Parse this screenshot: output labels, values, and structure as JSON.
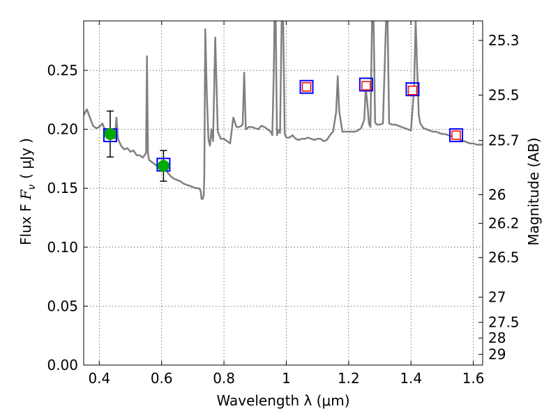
{
  "chart_data": {
    "type": "line",
    "xlabel": "Wavelength  λ (μm)",
    "ylabel": "Flux  F",
    "ylabel_sub": "ν",
    "ylabel_unit": "( μJy )",
    "y2label": "Magnitude (AB)",
    "xlim": [
      0.35,
      1.63
    ],
    "ylim": [
      0.0,
      0.292
    ],
    "grid": true,
    "xticks": [
      0.4,
      0.6,
      0.8,
      1.0,
      1.2,
      1.4,
      1.6
    ],
    "xtick_labels": [
      "0.4",
      "0.6",
      "0.8",
      "1",
      "1.2",
      "1.4",
      "1.6"
    ],
    "yticks": [
      0.0,
      0.05,
      0.1,
      0.15,
      0.2,
      0.25
    ],
    "ytick_labels": [
      "0.00",
      "0.05",
      "0.10",
      "0.15",
      "0.20",
      "0.25"
    ],
    "y2ticks": [
      {
        "label": "25.3",
        "mag": 25.3
      },
      {
        "label": "25.5",
        "mag": 25.5
      },
      {
        "label": "25.7",
        "mag": 25.7
      },
      {
        "label": "26",
        "mag": 26.0
      },
      {
        "label": "26.2",
        "mag": 26.2
      },
      {
        "label": "26.5",
        "mag": 26.5
      },
      {
        "label": "27",
        "mag": 27.0
      },
      {
        "label": "27.5",
        "mag": 27.5
      },
      {
        "label": "28",
        "mag": 28.0
      },
      {
        "label": "29",
        "mag": 29.0
      }
    ],
    "colors": {
      "sed": "#808080",
      "detection": "#00aa00",
      "model_box": "#0000ff",
      "upper_box": "#ff0000",
      "errorbar": "#000000"
    },
    "sed_points": [
      [
        0.35,
        0.212
      ],
      [
        0.36,
        0.217
      ],
      [
        0.37,
        0.21
      ],
      [
        0.38,
        0.203
      ],
      [
        0.39,
        0.201
      ],
      [
        0.4,
        0.202
      ],
      [
        0.41,
        0.205
      ],
      [
        0.42,
        0.198
      ],
      [
        0.43,
        0.196
      ],
      [
        0.44,
        0.2
      ],
      [
        0.45,
        0.192
      ],
      [
        0.455,
        0.21
      ],
      [
        0.46,
        0.192
      ],
      [
        0.47,
        0.186
      ],
      [
        0.48,
        0.183
      ],
      [
        0.49,
        0.184
      ],
      [
        0.5,
        0.181
      ],
      [
        0.51,
        0.182
      ],
      [
        0.52,
        0.178
      ],
      [
        0.53,
        0.178
      ],
      [
        0.54,
        0.176
      ],
      [
        0.55,
        0.18
      ],
      [
        0.553,
        0.262
      ],
      [
        0.556,
        0.18
      ],
      [
        0.56,
        0.174
      ],
      [
        0.57,
        0.172
      ],
      [
        0.58,
        0.17
      ],
      [
        0.59,
        0.168
      ],
      [
        0.6,
        0.168
      ],
      [
        0.61,
        0.167
      ],
      [
        0.62,
        0.163
      ],
      [
        0.63,
        0.16
      ],
      [
        0.64,
        0.158
      ],
      [
        0.65,
        0.157
      ],
      [
        0.66,
        0.156
      ],
      [
        0.67,
        0.154
      ],
      [
        0.68,
        0.153
      ],
      [
        0.69,
        0.152
      ],
      [
        0.7,
        0.151
      ],
      [
        0.71,
        0.15
      ],
      [
        0.72,
        0.15
      ],
      [
        0.725,
        0.148
      ],
      [
        0.728,
        0.141
      ],
      [
        0.732,
        0.141
      ],
      [
        0.735,
        0.144
      ],
      [
        0.737,
        0.16
      ],
      [
        0.74,
        0.285
      ],
      [
        0.745,
        0.23
      ],
      [
        0.75,
        0.192
      ],
      [
        0.755,
        0.186
      ],
      [
        0.76,
        0.2
      ],
      [
        0.765,
        0.19
      ],
      [
        0.772,
        0.278
      ],
      [
        0.78,
        0.198
      ],
      [
        0.79,
        0.192
      ],
      [
        0.8,
        0.192
      ],
      [
        0.81,
        0.19
      ],
      [
        0.82,
        0.188
      ],
      [
        0.83,
        0.21
      ],
      [
        0.84,
        0.202
      ],
      [
        0.85,
        0.202
      ],
      [
        0.86,
        0.204
      ],
      [
        0.865,
        0.248
      ],
      [
        0.87,
        0.2
      ],
      [
        0.88,
        0.202
      ],
      [
        0.89,
        0.202
      ],
      [
        0.9,
        0.201
      ],
      [
        0.91,
        0.2
      ],
      [
        0.92,
        0.203
      ],
      [
        0.93,
        0.202
      ],
      [
        0.94,
        0.2
      ],
      [
        0.95,
        0.198
      ],
      [
        0.955,
        0.195
      ],
      [
        0.96,
        0.25
      ],
      [
        0.962,
        0.292
      ],
      [
        0.966,
        0.292
      ],
      [
        0.97,
        0.195
      ],
      [
        0.975,
        0.199
      ],
      [
        0.98,
        0.197
      ],
      [
        0.985,
        0.292
      ],
      [
        0.99,
        0.292
      ],
      [
        0.995,
        0.196
      ],
      [
        1.0,
        0.193
      ],
      [
        1.01,
        0.193
      ],
      [
        1.02,
        0.195
      ],
      [
        1.03,
        0.192
      ],
      [
        1.04,
        0.191
      ],
      [
        1.05,
        0.192
      ],
      [
        1.06,
        0.192
      ],
      [
        1.07,
        0.193
      ],
      [
        1.08,
        0.192
      ],
      [
        1.09,
        0.191
      ],
      [
        1.1,
        0.192
      ],
      [
        1.11,
        0.192
      ],
      [
        1.12,
        0.19
      ],
      [
        1.13,
        0.191
      ],
      [
        1.14,
        0.195
      ],
      [
        1.15,
        0.198
      ],
      [
        1.16,
        0.215
      ],
      [
        1.165,
        0.245
      ],
      [
        1.17,
        0.215
      ],
      [
        1.18,
        0.198
      ],
      [
        1.19,
        0.198
      ],
      [
        1.2,
        0.198
      ],
      [
        1.21,
        0.198
      ],
      [
        1.22,
        0.198
      ],
      [
        1.23,
        0.199
      ],
      [
        1.24,
        0.201
      ],
      [
        1.25,
        0.208
      ],
      [
        1.255,
        0.235
      ],
      [
        1.26,
        0.222
      ],
      [
        1.265,
        0.205
      ],
      [
        1.27,
        0.202
      ],
      [
        1.275,
        0.292
      ],
      [
        1.28,
        0.292
      ],
      [
        1.285,
        0.206
      ],
      [
        1.29,
        0.204
      ],
      [
        1.3,
        0.204
      ],
      [
        1.31,
        0.205
      ],
      [
        1.32,
        0.292
      ],
      [
        1.325,
        0.292
      ],
      [
        1.33,
        0.205
      ],
      [
        1.34,
        0.204
      ],
      [
        1.35,
        0.204
      ],
      [
        1.36,
        0.203
      ],
      [
        1.37,
        0.202
      ],
      [
        1.38,
        0.201
      ],
      [
        1.39,
        0.2
      ],
      [
        1.4,
        0.199
      ],
      [
        1.41,
        0.235
      ],
      [
        1.415,
        0.292
      ],
      [
        1.42,
        0.25
      ],
      [
        1.425,
        0.212
      ],
      [
        1.43,
        0.205
      ],
      [
        1.44,
        0.201
      ],
      [
        1.45,
        0.2
      ],
      [
        1.46,
        0.199
      ],
      [
        1.47,
        0.198
      ],
      [
        1.48,
        0.198
      ],
      [
        1.49,
        0.197
      ],
      [
        1.5,
        0.196
      ],
      [
        1.51,
        0.196
      ],
      [
        1.52,
        0.195
      ],
      [
        1.53,
        0.194
      ],
      [
        1.54,
        0.194
      ],
      [
        1.55,
        0.192
      ],
      [
        1.56,
        0.191
      ],
      [
        1.57,
        0.19
      ],
      [
        1.58,
        0.189
      ],
      [
        1.59,
        0.188
      ],
      [
        1.6,
        0.188
      ],
      [
        1.61,
        0.187
      ],
      [
        1.62,
        0.187
      ],
      [
        1.63,
        0.187
      ]
    ],
    "photometry": [
      {
        "x": 0.435,
        "y": 0.196,
        "yerr": 0.0195,
        "kind": "detection",
        "model": 0.195
      },
      {
        "x": 0.606,
        "y": 0.169,
        "yerr": 0.013,
        "kind": "detection",
        "model": 0.17
      },
      {
        "x": 1.065,
        "y": 0.236,
        "kind": "limit",
        "model": 0.236
      },
      {
        "x": 1.256,
        "y": 0.237,
        "kind": "limit",
        "model": 0.238
      },
      {
        "x": 1.405,
        "y": 0.233,
        "kind": "limit",
        "model": 0.234
      },
      {
        "x": 1.545,
        "y": 0.195,
        "kind": "limit",
        "model": 0.195
      }
    ]
  }
}
